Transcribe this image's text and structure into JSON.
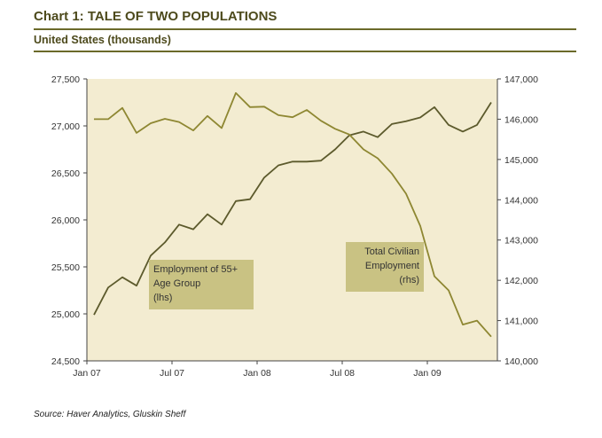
{
  "chart_data": {
    "type": "line",
    "title": "Chart 1: TALE OF TWO POPULATIONS",
    "subtitle": "United States (thousands)",
    "source": "Source: Haver Analytics, Gluskin Sheff",
    "x": [
      "Jan 07",
      "Feb 07",
      "Mar 07",
      "Apr 07",
      "May 07",
      "Jun 07",
      "Jul 07",
      "Aug 07",
      "Sep 07",
      "Oct 07",
      "Nov 07",
      "Dec 07",
      "Jan 08",
      "Feb 08",
      "Mar 08",
      "Apr 08",
      "May 08",
      "Jun 08",
      "Jul 08",
      "Aug 08",
      "Sep 08",
      "Oct 08",
      "Nov 08",
      "Dec 08",
      "Jan 09",
      "Feb 09",
      "Mar 09",
      "Apr 09",
      "May 09"
    ],
    "x_tick_labels": [
      "Jan 07",
      "Jul 07",
      "Jan 08",
      "Jul 08",
      "Jan 09"
    ],
    "y_left": {
      "ylim": [
        24500,
        27500
      ],
      "ticks": [
        "24,500",
        "25,000",
        "25,500",
        "26,000",
        "26,500",
        "27,000",
        "27,500"
      ]
    },
    "y_right": {
      "ylim": [
        140000,
        147000
      ],
      "ticks": [
        "140,000",
        "141,000",
        "142,000",
        "143,000",
        "144,000",
        "145,000",
        "146,000",
        "147,000"
      ]
    },
    "series": [
      {
        "name": "Employment of 55+ Age Group (lhs)",
        "label_lines": [
          "Employment of 55+",
          "Age Group",
          "(lhs)"
        ],
        "axis": "left",
        "color": "#5c5a2c",
        "values": [
          24990,
          25280,
          25390,
          25300,
          25620,
          25760,
          25950,
          25900,
          26060,
          25950,
          26200,
          26220,
          26450,
          26580,
          26620,
          26620,
          26630,
          26750,
          26900,
          26940,
          26880,
          27020,
          27050,
          27090,
          27200,
          27010,
          26940,
          27010,
          27250
        ]
      },
      {
        "name": "Total Civilian Employment (rhs)",
        "label_lines": [
          "Total Civilian",
          "Employment",
          "(rhs)"
        ],
        "axis": "right",
        "color": "#8e8732",
        "values": [
          146000,
          146000,
          146280,
          145660,
          145900,
          146010,
          145930,
          145720,
          146080,
          145780,
          146650,
          146300,
          146310,
          146100,
          146050,
          146230,
          145960,
          145760,
          145620,
          145250,
          145030,
          144650,
          144150,
          143350,
          142100,
          141750,
          140900,
          141000,
          140600
        ]
      }
    ],
    "grid": false,
    "plot_background": "#f3ecd1"
  }
}
